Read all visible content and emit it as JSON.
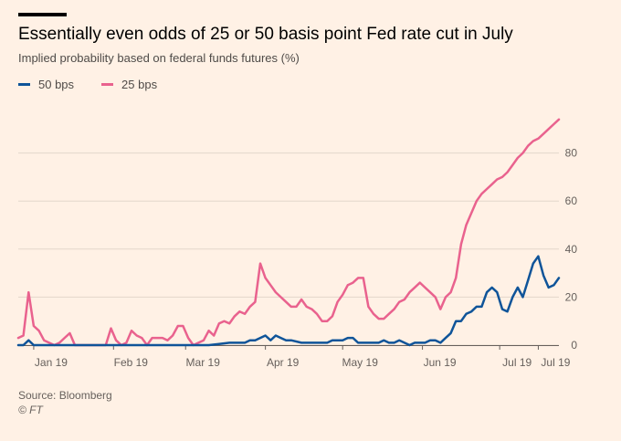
{
  "header": {
    "title": "Essentially even odds of 25 or 50 basis point Fed rate cut in July",
    "subtitle": "Implied probability based on federal funds futures (%)"
  },
  "footer": {
    "source": "Source: Bloomberg",
    "credit": "© FT"
  },
  "colors": {
    "background": "#FFF1E5",
    "grid": "#E3D7CB",
    "axis_text": "#66605C",
    "series_50": "#0F5499",
    "series_25": "#E9628E"
  },
  "chart_data": {
    "type": "line",
    "title": "Essentially even odds of 25 or 50 basis point Fed rate cut in July",
    "subtitle": "Implied probability based on federal funds futures (%)",
    "xlabel": "",
    "ylabel": "",
    "ylim": [
      0,
      100
    ],
    "y_ticks": [
      0,
      20,
      40,
      60,
      80
    ],
    "x_range_days": [
      0,
      210
    ],
    "x_ticks": [
      {
        "day": 6,
        "label": "Jan 19"
      },
      {
        "day": 37,
        "label": "Feb 19"
      },
      {
        "day": 65,
        "label": "Mar 19"
      },
      {
        "day": 96,
        "label": "Apr 19"
      },
      {
        "day": 126,
        "label": "May 19"
      },
      {
        "day": 157,
        "label": "Jun 19"
      },
      {
        "day": 187,
        "label": "Jul 19"
      },
      {
        "day": 202,
        "label": "Jul 19"
      }
    ],
    "grid": true,
    "legend_position": "top-left",
    "series": [
      {
        "name": "50 bps",
        "color": "#0F5499",
        "x": [
          0,
          2,
          4,
          6,
          8,
          10,
          14,
          18,
          22,
          26,
          30,
          34,
          38,
          42,
          46,
          50,
          54,
          58,
          62,
          66,
          70,
          74,
          78,
          82,
          84,
          86,
          88,
          90,
          92,
          94,
          96,
          98,
          100,
          102,
          104,
          106,
          110,
          114,
          118,
          120,
          122,
          124,
          126,
          128,
          130,
          132,
          134,
          136,
          138,
          140,
          142,
          144,
          146,
          148,
          150,
          152,
          154,
          156,
          158,
          160,
          162,
          164,
          166,
          168,
          170,
          172,
          174,
          176,
          178,
          180,
          182,
          184,
          186,
          188,
          190,
          192,
          194,
          196,
          198,
          200,
          202,
          204,
          206,
          208,
          210
        ],
        "values": [
          0,
          0,
          2,
          0,
          0,
          0,
          0,
          0,
          0,
          0,
          0,
          0,
          0,
          0,
          0,
          0,
          0,
          0,
          0,
          0,
          0,
          0,
          0.5,
          1,
          1,
          1,
          1,
          2,
          2,
          3,
          4,
          2,
          4,
          3,
          2,
          2,
          1,
          1,
          1,
          1,
          2,
          2,
          2,
          3,
          3,
          1,
          1,
          1,
          1,
          1,
          2,
          1,
          1,
          2,
          1,
          0,
          1,
          1,
          1,
          2,
          2,
          1,
          3,
          5,
          10,
          10,
          13,
          14,
          16,
          16,
          22,
          24,
          22,
          15,
          14,
          20,
          24,
          20,
          27,
          34,
          37,
          29,
          24,
          25,
          28
        ]
      },
      {
        "name": "25 bps",
        "color": "#E9628E",
        "x": [
          0,
          2,
          4,
          6,
          8,
          10,
          12,
          14,
          16,
          18,
          20,
          22,
          24,
          26,
          28,
          30,
          32,
          34,
          36,
          38,
          40,
          42,
          44,
          46,
          48,
          50,
          52,
          54,
          56,
          58,
          60,
          62,
          64,
          66,
          68,
          70,
          72,
          74,
          76,
          78,
          80,
          82,
          84,
          86,
          88,
          90,
          92,
          94,
          96,
          98,
          100,
          102,
          104,
          106,
          108,
          110,
          112,
          114,
          116,
          118,
          120,
          122,
          124,
          126,
          128,
          130,
          132,
          134,
          136,
          138,
          140,
          142,
          144,
          146,
          148,
          150,
          152,
          154,
          156,
          158,
          160,
          162,
          164,
          166,
          168,
          170,
          172,
          174,
          176,
          178,
          180,
          182,
          184,
          186,
          188,
          190,
          192,
          194,
          196,
          198,
          200,
          202,
          204,
          206,
          208,
          210
        ],
        "values": [
          3,
          4,
          22,
          8,
          6,
          2,
          1,
          0,
          1,
          3,
          5,
          0,
          0,
          0,
          0,
          0,
          0,
          0,
          7,
          2,
          0,
          1,
          6,
          4,
          3,
          0,
          3,
          3,
          3,
          2,
          4,
          8,
          8,
          3,
          0,
          1,
          2,
          6,
          4,
          9,
          10,
          9,
          12,
          14,
          13,
          16,
          18,
          34,
          28,
          25,
          22,
          20,
          18,
          16,
          16,
          19,
          16,
          15,
          13,
          10,
          10,
          12,
          18,
          21,
          25,
          26,
          28,
          28,
          16,
          13,
          11,
          11,
          13,
          15,
          18,
          19,
          22,
          24,
          26,
          24,
          22,
          20,
          15,
          20,
          22,
          28,
          42,
          50,
          55,
          60,
          63,
          65,
          67,
          69,
          70,
          72,
          75,
          78,
          80,
          83,
          85,
          86,
          88,
          90,
          92,
          94
        ]
      }
    ]
  }
}
